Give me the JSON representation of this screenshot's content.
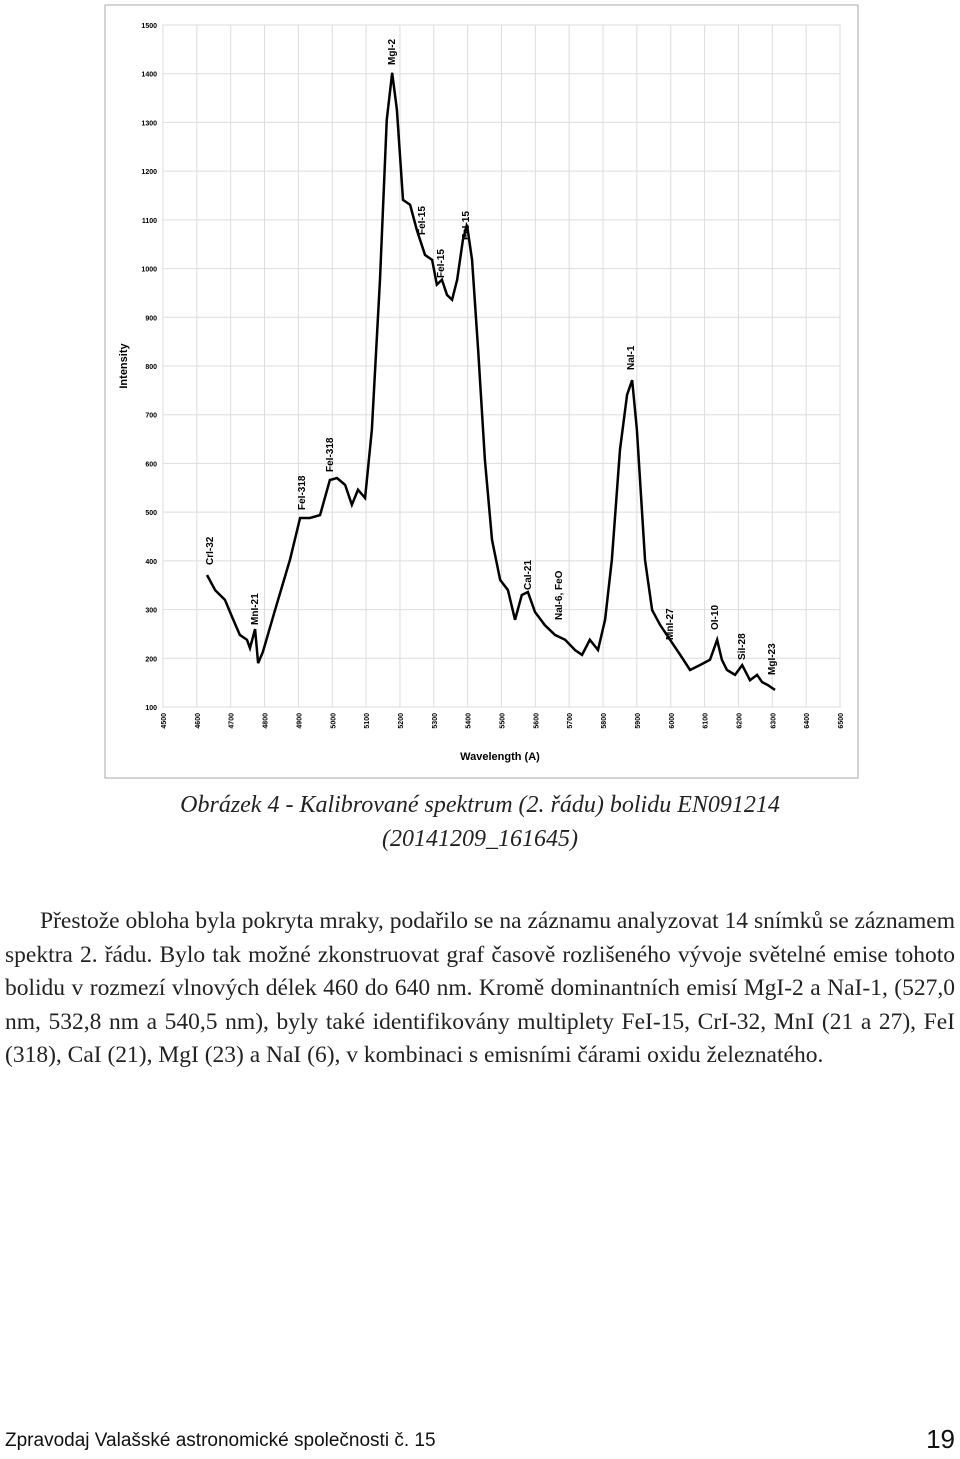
{
  "chart_data": {
    "type": "line",
    "ylabel": "Intensity",
    "xlabel": "Wavelength (A)",
    "color": "#000000",
    "grid": true,
    "xlim": [
      4500,
      6500
    ],
    "xticks": [
      4500,
      4600,
      4700,
      4800,
      4900,
      5000,
      5100,
      5200,
      5300,
      5400,
      5500,
      5600,
      5700,
      5800,
      5900,
      6000,
      6100,
      6200,
      6300,
      6400,
      6500
    ],
    "ylim": [
      100,
      1500
    ],
    "yticks": [
      100,
      200,
      300,
      400,
      500,
      600,
      700,
      800,
      900,
      1000,
      1100,
      1200,
      1300,
      1400,
      1500
    ],
    "x": [
      4630,
      4654,
      4683,
      4704,
      4727,
      4748,
      4757,
      4772,
      4781,
      4795,
      4831,
      4875,
      4905,
      4934,
      4964,
      4993,
      5014,
      5038,
      5058,
      5076,
      5097,
      5117,
      5141,
      5161,
      5177,
      5191,
      5209,
      5230,
      5250,
      5274,
      5295,
      5309,
      5324,
      5339,
      5354,
      5369,
      5386,
      5398,
      5413,
      5431,
      5451,
      5472,
      5496,
      5519,
      5540,
      5560,
      5578,
      5599,
      5628,
      5658,
      5688,
      5717,
      5738,
      5761,
      5785,
      5806,
      5826,
      5850,
      5871,
      5886,
      5900,
      5924,
      5945,
      5969,
      5998,
      6028,
      6057,
      6086,
      6116,
      6137,
      6151,
      6166,
      6190,
      6211,
      6234,
      6255,
      6270,
      6287,
      6308
    ],
    "values": [
      371,
      340,
      320,
      285,
      248,
      238,
      221,
      260,
      190,
      213,
      299,
      402,
      488,
      488,
      494,
      566,
      570,
      556,
      515,
      546,
      529,
      669,
      977,
      1305,
      1402,
      1326,
      1141,
      1131,
      1079,
      1028,
      1018,
      967,
      977,
      946,
      936,
      977,
      1059,
      1090,
      1018,
      833,
      607,
      443,
      361,
      340,
      279,
      330,
      336,
      295,
      268,
      248,
      238,
      217,
      207,
      238,
      217,
      279,
      402,
      628,
      741,
      771,
      669,
      402,
      299,
      268,
      238,
      207,
      176,
      186,
      197,
      238,
      197,
      176,
      166,
      186,
      155,
      166,
      151,
      145,
      135
    ],
    "annotations": [
      "MgI-2",
      "FeI-15",
      "FeI-15",
      "FeI-15",
      "FeI-318",
      "FeI-318",
      "CrI-32",
      "MnI-21",
      "CaI-21",
      "NaI-6, FeO",
      "NaI-1",
      "MnI-27",
      "OI-10",
      "SiI-28",
      "MgI-23"
    ]
  },
  "caption": [
    "Obrázek 4 - Kalibrované spektrum (2. řádu) bolidu EN091214",
    "(20141209_161645)"
  ],
  "paragraph": "Přestože obloha byla pokryta mraky, podařilo se na záznamu analyzovat 14 snímků se záznamem spektra 2. řádu. Bylo tak možné zkonstruovat graf časově rozlišeného vývoje světelné emise tohoto bolidu v rozmezí vlnových délek 460 do 640 nm. Kromě dominantních emisí MgI-2 a NaI-1, (527,0 nm, 532,8 nm a 540,5 nm), byly také identifikovány multiplety FeI-15, CrI-32, MnI (21 a 27), FeI (318), CaI (21), MgI (23) a NaI (6), v kombinaci s emisními čárami oxidu železnatého.",
  "footer": {
    "journal": "Zpravodaj Valašské astronomické společnosti č. 15",
    "page": "19"
  }
}
